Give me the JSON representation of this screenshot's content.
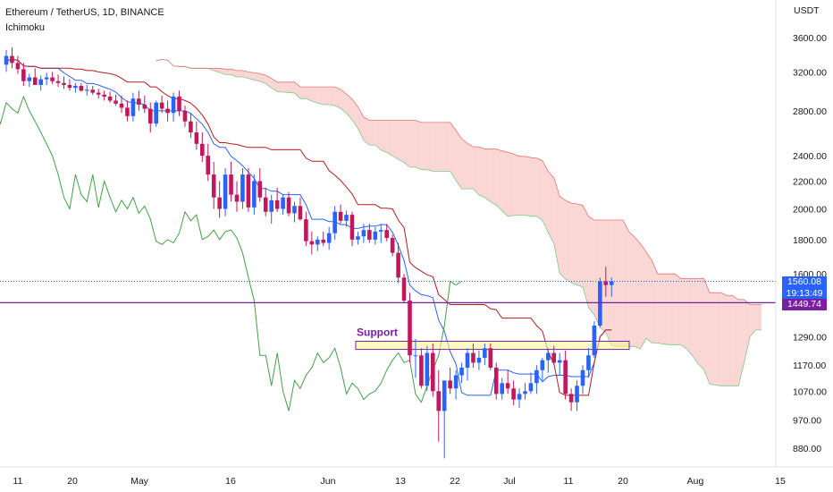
{
  "header": {
    "title": "Ethereum / TetherUS, 1D, BINANCE",
    "indicator": "Ichimoku"
  },
  "colors": {
    "bull": "#2962ff",
    "bear": "#c2185b",
    "tenkan": "#2962ff",
    "kijun": "#b71c1c",
    "chikou": "#43a047",
    "cloud_bear": "#f8c9c5",
    "cloud_bull": "#c8e6c9",
    "support": "#7b1fa2",
    "support_fill": "#fff59d",
    "price_tag": "#2962ff",
    "level_tag": "#7b1fa2"
  },
  "price_tags": {
    "last_price": "1560.08",
    "countdown": "19:13:49",
    "level": "1449.74"
  },
  "annotation": {
    "support_label": "Support"
  },
  "chart_data": {
    "type": "candlestick",
    "symbol": "ETHUSDT",
    "exchange": "BINANCE",
    "timeframe": "1D",
    "y_scale": "log",
    "y_unit": "USDT",
    "y_ticks": [
      "3600.00",
      "3200.00",
      "2800.00",
      "2400.00",
      "2200.00",
      "2000.00",
      "1800.00",
      "1600.00",
      "1290.00",
      "1170.00",
      "1070.00",
      "970.00",
      "880.00"
    ],
    "x_ticks": [
      "11",
      "20",
      "May",
      "16",
      "Jun",
      "13",
      "22",
      "Jul",
      "11",
      "20",
      "Aug",
      "15"
    ],
    "ohlc": [
      [
        3280,
        3450,
        3200,
        3380
      ],
      [
        3380,
        3480,
        3240,
        3300
      ],
      [
        3300,
        3380,
        3180,
        3230
      ],
      [
        3230,
        3300,
        3050,
        3100
      ],
      [
        3100,
        3180,
        3040,
        3140
      ],
      [
        3140,
        3240,
        3080,
        3060
      ],
      [
        3060,
        3160,
        3000,
        3120
      ],
      [
        3120,
        3190,
        3060,
        3140
      ],
      [
        3140,
        3200,
        3070,
        3100
      ],
      [
        3100,
        3170,
        3040,
        3080
      ],
      [
        3080,
        3150,
        3020,
        3060
      ],
      [
        3060,
        3120,
        3000,
        3030
      ],
      [
        3030,
        3080,
        2980,
        3050
      ],
      [
        3050,
        3080,
        2990,
        3000
      ],
      [
        3000,
        3060,
        2950,
        3010
      ],
      [
        3010,
        3050,
        2960,
        2980
      ],
      [
        2980,
        3020,
        2920,
        2960
      ],
      [
        2960,
        3000,
        2900,
        2940
      ],
      [
        2940,
        2990,
        2880,
        2900
      ],
      [
        2900,
        2960,
        2850,
        2870
      ],
      [
        2870,
        2950,
        2780,
        2830
      ],
      [
        2830,
        2900,
        2700,
        2750
      ],
      [
        2750,
        2980,
        2700,
        2920
      ],
      [
        2920,
        3000,
        2800,
        2860
      ],
      [
        2860,
        2950,
        2780,
        2820
      ],
      [
        2820,
        2880,
        2600,
        2680
      ],
      [
        2680,
        2900,
        2650,
        2880
      ],
      [
        2880,
        2950,
        2780,
        2820
      ],
      [
        2820,
        2900,
        2700,
        2780
      ],
      [
        2780,
        2980,
        2700,
        2940
      ],
      [
        2940,
        3000,
        2750,
        2800
      ],
      [
        2800,
        2850,
        2650,
        2700
      ],
      [
        2700,
        2780,
        2550,
        2600
      ],
      [
        2600,
        2700,
        2450,
        2500
      ],
      [
        2500,
        2600,
        2350,
        2400
      ],
      [
        2400,
        2500,
        2200,
        2250
      ],
      [
        2250,
        2350,
        2000,
        2080
      ],
      [
        2080,
        2200,
        1940,
        2000
      ],
      [
        2000,
        2300,
        1950,
        2250
      ],
      [
        2250,
        2350,
        2050,
        2100
      ],
      [
        2100,
        2200,
        1980,
        2050
      ],
      [
        2050,
        2300,
        2000,
        2250
      ],
      [
        2250,
        2300,
        1980,
        2010
      ],
      [
        2010,
        2250,
        1960,
        2200
      ],
      [
        2200,
        2300,
        2050,
        2080
      ],
      [
        2080,
        2150,
        1950,
        1980
      ],
      [
        1980,
        2100,
        1900,
        2060
      ],
      [
        2060,
        2150,
        1980,
        2000
      ],
      [
        2000,
        2100,
        1960,
        2080
      ],
      [
        2080,
        2120,
        1950,
        1970
      ],
      [
        1970,
        2050,
        1910,
        2020
      ],
      [
        2020,
        2080,
        1920,
        1930
      ],
      [
        1930,
        1980,
        1760,
        1790
      ],
      [
        1790,
        1850,
        1710,
        1770
      ],
      [
        1770,
        1820,
        1730,
        1800
      ],
      [
        1800,
        1850,
        1760,
        1780
      ],
      [
        1780,
        1880,
        1740,
        1840
      ],
      [
        1840,
        2020,
        1800,
        1980
      ],
      [
        1980,
        2030,
        1900,
        1920
      ],
      [
        1920,
        1990,
        1880,
        1960
      ],
      [
        1960,
        1980,
        1760,
        1800
      ],
      [
        1800,
        1850,
        1770,
        1820
      ],
      [
        1820,
        1900,
        1780,
        1860
      ],
      [
        1860,
        1900,
        1780,
        1800
      ],
      [
        1800,
        1880,
        1770,
        1850
      ],
      [
        1850,
        1900,
        1780,
        1860
      ],
      [
        1860,
        1900,
        1790,
        1810
      ],
      [
        1810,
        1830,
        1700,
        1720
      ],
      [
        1720,
        1780,
        1550,
        1580
      ],
      [
        1580,
        1600,
        1450,
        1460
      ],
      [
        1460,
        1500,
        1180,
        1210
      ],
      [
        1210,
        1280,
        1120,
        1210
      ],
      [
        1210,
        1240,
        1080,
        1090
      ],
      [
        1090,
        1250,
        1070,
        1220
      ],
      [
        1220,
        1260,
        1050,
        1070
      ],
      [
        1070,
        1150,
        900,
        1000
      ],
      [
        1000,
        1100,
        850,
        1110
      ],
      [
        1110,
        1160,
        1060,
        1080
      ],
      [
        1080,
        1150,
        1040,
        1130
      ],
      [
        1130,
        1180,
        1100,
        1160
      ],
      [
        1160,
        1240,
        1110,
        1220
      ],
      [
        1220,
        1260,
        1160,
        1180
      ],
      [
        1180,
        1230,
        1150,
        1200
      ],
      [
        1200,
        1260,
        1170,
        1240
      ],
      [
        1240,
        1260,
        1150,
        1160
      ],
      [
        1160,
        1180,
        1040,
        1060
      ],
      [
        1060,
        1120,
        1040,
        1100
      ],
      [
        1100,
        1150,
        1060,
        1080
      ],
      [
        1080,
        1110,
        1020,
        1040
      ],
      [
        1040,
        1080,
        1010,
        1060
      ],
      [
        1060,
        1100,
        1040,
        1070
      ],
      [
        1070,
        1140,
        1060,
        1100
      ],
      [
        1100,
        1170,
        1060,
        1150
      ],
      [
        1150,
        1200,
        1110,
        1190
      ],
      [
        1190,
        1240,
        1140,
        1220
      ],
      [
        1220,
        1250,
        1170,
        1180
      ],
      [
        1180,
        1220,
        1130,
        1190
      ],
      [
        1190,
        1230,
        1040,
        1060
      ],
      [
        1060,
        1080,
        1000,
        1030
      ],
      [
        1030,
        1110,
        1000,
        1090
      ],
      [
        1090,
        1170,
        1060,
        1150
      ],
      [
        1150,
        1240,
        1120,
        1210
      ],
      [
        1210,
        1360,
        1200,
        1340
      ],
      [
        1340,
        1580,
        1330,
        1560
      ],
      [
        1560,
        1640,
        1480,
        1540
      ],
      [
        1540,
        1580,
        1480,
        1560
      ]
    ],
    "support_zone": [
      1235,
      1270
    ],
    "horizontal_level": 1449.74,
    "last_price": 1560.08
  }
}
